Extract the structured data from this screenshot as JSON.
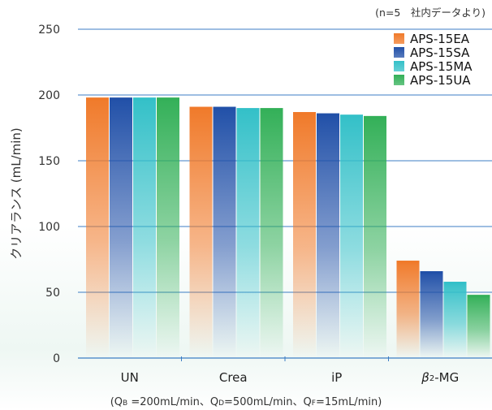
{
  "chart_data": {
    "type": "bar",
    "note": "(n=5　社内データより)",
    "ylabel": "クリアランス (mL/min)",
    "ylim": [
      0,
      250
    ],
    "yticks": [
      0,
      50,
      100,
      150,
      200,
      250
    ],
    "categories": [
      "UN",
      "Crea",
      "iP",
      "β2-MG"
    ],
    "category_parts": [
      {
        "main": "UN"
      },
      {
        "main": "Crea"
      },
      {
        "main": "iP"
      },
      {
        "main": "β",
        "sup": "2",
        "rest": "-MG"
      }
    ],
    "series": [
      {
        "name": "APS-15EA",
        "color": "#f07a2a",
        "values": [
          198,
          191,
          187,
          74
        ]
      },
      {
        "name": "APS-15SA",
        "color": "#2150a8",
        "values": [
          198,
          191,
          186,
          66
        ]
      },
      {
        "name": "APS-15MA",
        "color": "#33c0c8",
        "values": [
          198,
          190,
          185,
          58
        ]
      },
      {
        "name": "APS-15UA",
        "color": "#33b058",
        "values": [
          198,
          190,
          184,
          48
        ]
      }
    ],
    "grid": true,
    "legend": "top-right"
  },
  "footnote": {
    "open": "(Q",
    "qb_sub": "B",
    "qb_val": " =200mL/min、Q",
    "qd_sub": "D",
    "qd_val": "=500mL/min、Q",
    "qf_sub": "F",
    "qf_val": "=15mL/min)"
  }
}
